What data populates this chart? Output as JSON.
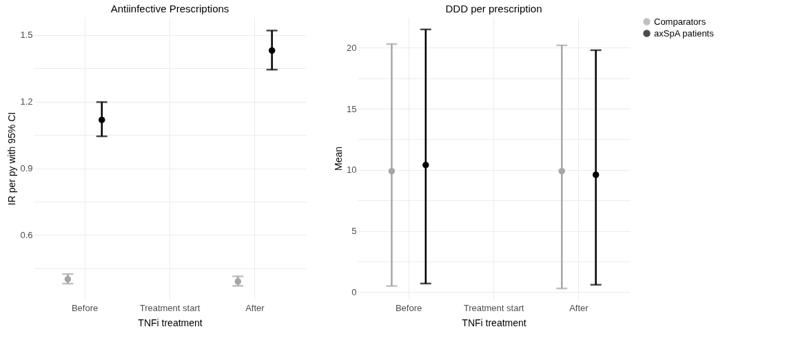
{
  "chart_data": [
    {
      "type": "scatter",
      "title": "Antiinfective Prescriptions",
      "xlabel": "TNFi treatment",
      "ylabel": "IR per py with 95% CI",
      "categories": [
        "Before",
        "Treatment start",
        "After"
      ],
      "series": [
        {
          "name": "Comparators",
          "color": "#a6a6a6",
          "values": [
            0.401,
            null,
            0.391
          ],
          "errors": [
            [
              0.381,
              0.424
            ],
            null,
            [
              0.371,
              0.414
            ]
          ]
        },
        {
          "name": "axSpA patients",
          "color": "#000000",
          "values": [
            1.118,
            null,
            1.43
          ],
          "errors": [
            [
              1.044,
              1.198
            ],
            null,
            [
              1.344,
              1.52
            ]
          ]
        }
      ],
      "ylim": [
        0.31,
        1.58
      ],
      "yticks": [
        {
          "value": 0.45,
          "label": null
        },
        0.6,
        {
          "value": 0.75,
          "label": null
        },
        0.9,
        {
          "value": 1.05,
          "label": null
        },
        1.2,
        {
          "value": 1.35,
          "label": null
        },
        1.5
      ],
      "grid": true,
      "marker": "circle",
      "legend": "right"
    },
    {
      "type": "scatter",
      "title": "DDD per prescription",
      "xlabel": "TNFi treatment",
      "ylabel": "Mean",
      "categories": [
        "Before",
        "Treatment start",
        "After"
      ],
      "series": [
        {
          "name": "Comparators",
          "color": "#a6a6a6",
          "values": [
            9.9,
            null,
            9.9
          ],
          "errors": [
            [
              0.5,
              20.3
            ],
            null,
            [
              0.3,
              20.2
            ]
          ]
        },
        {
          "name": "axSpA patients",
          "color": "#000000",
          "values": [
            10.4,
            null,
            9.6
          ],
          "errors": [
            [
              0.7,
              21.5
            ],
            null,
            [
              0.6,
              19.8
            ]
          ]
        }
      ],
      "ylim": [
        -0.6,
        22.5
      ],
      "yticks": [
        0,
        {
          "value": 2.5,
          "label": null
        },
        5,
        {
          "value": 7.5,
          "label": null
        },
        10,
        {
          "value": 12.5,
          "label": null
        },
        15,
        {
          "value": 17.5,
          "label": null
        },
        20
      ],
      "grid": true,
      "marker": "circle",
      "legend": "right"
    }
  ]
}
